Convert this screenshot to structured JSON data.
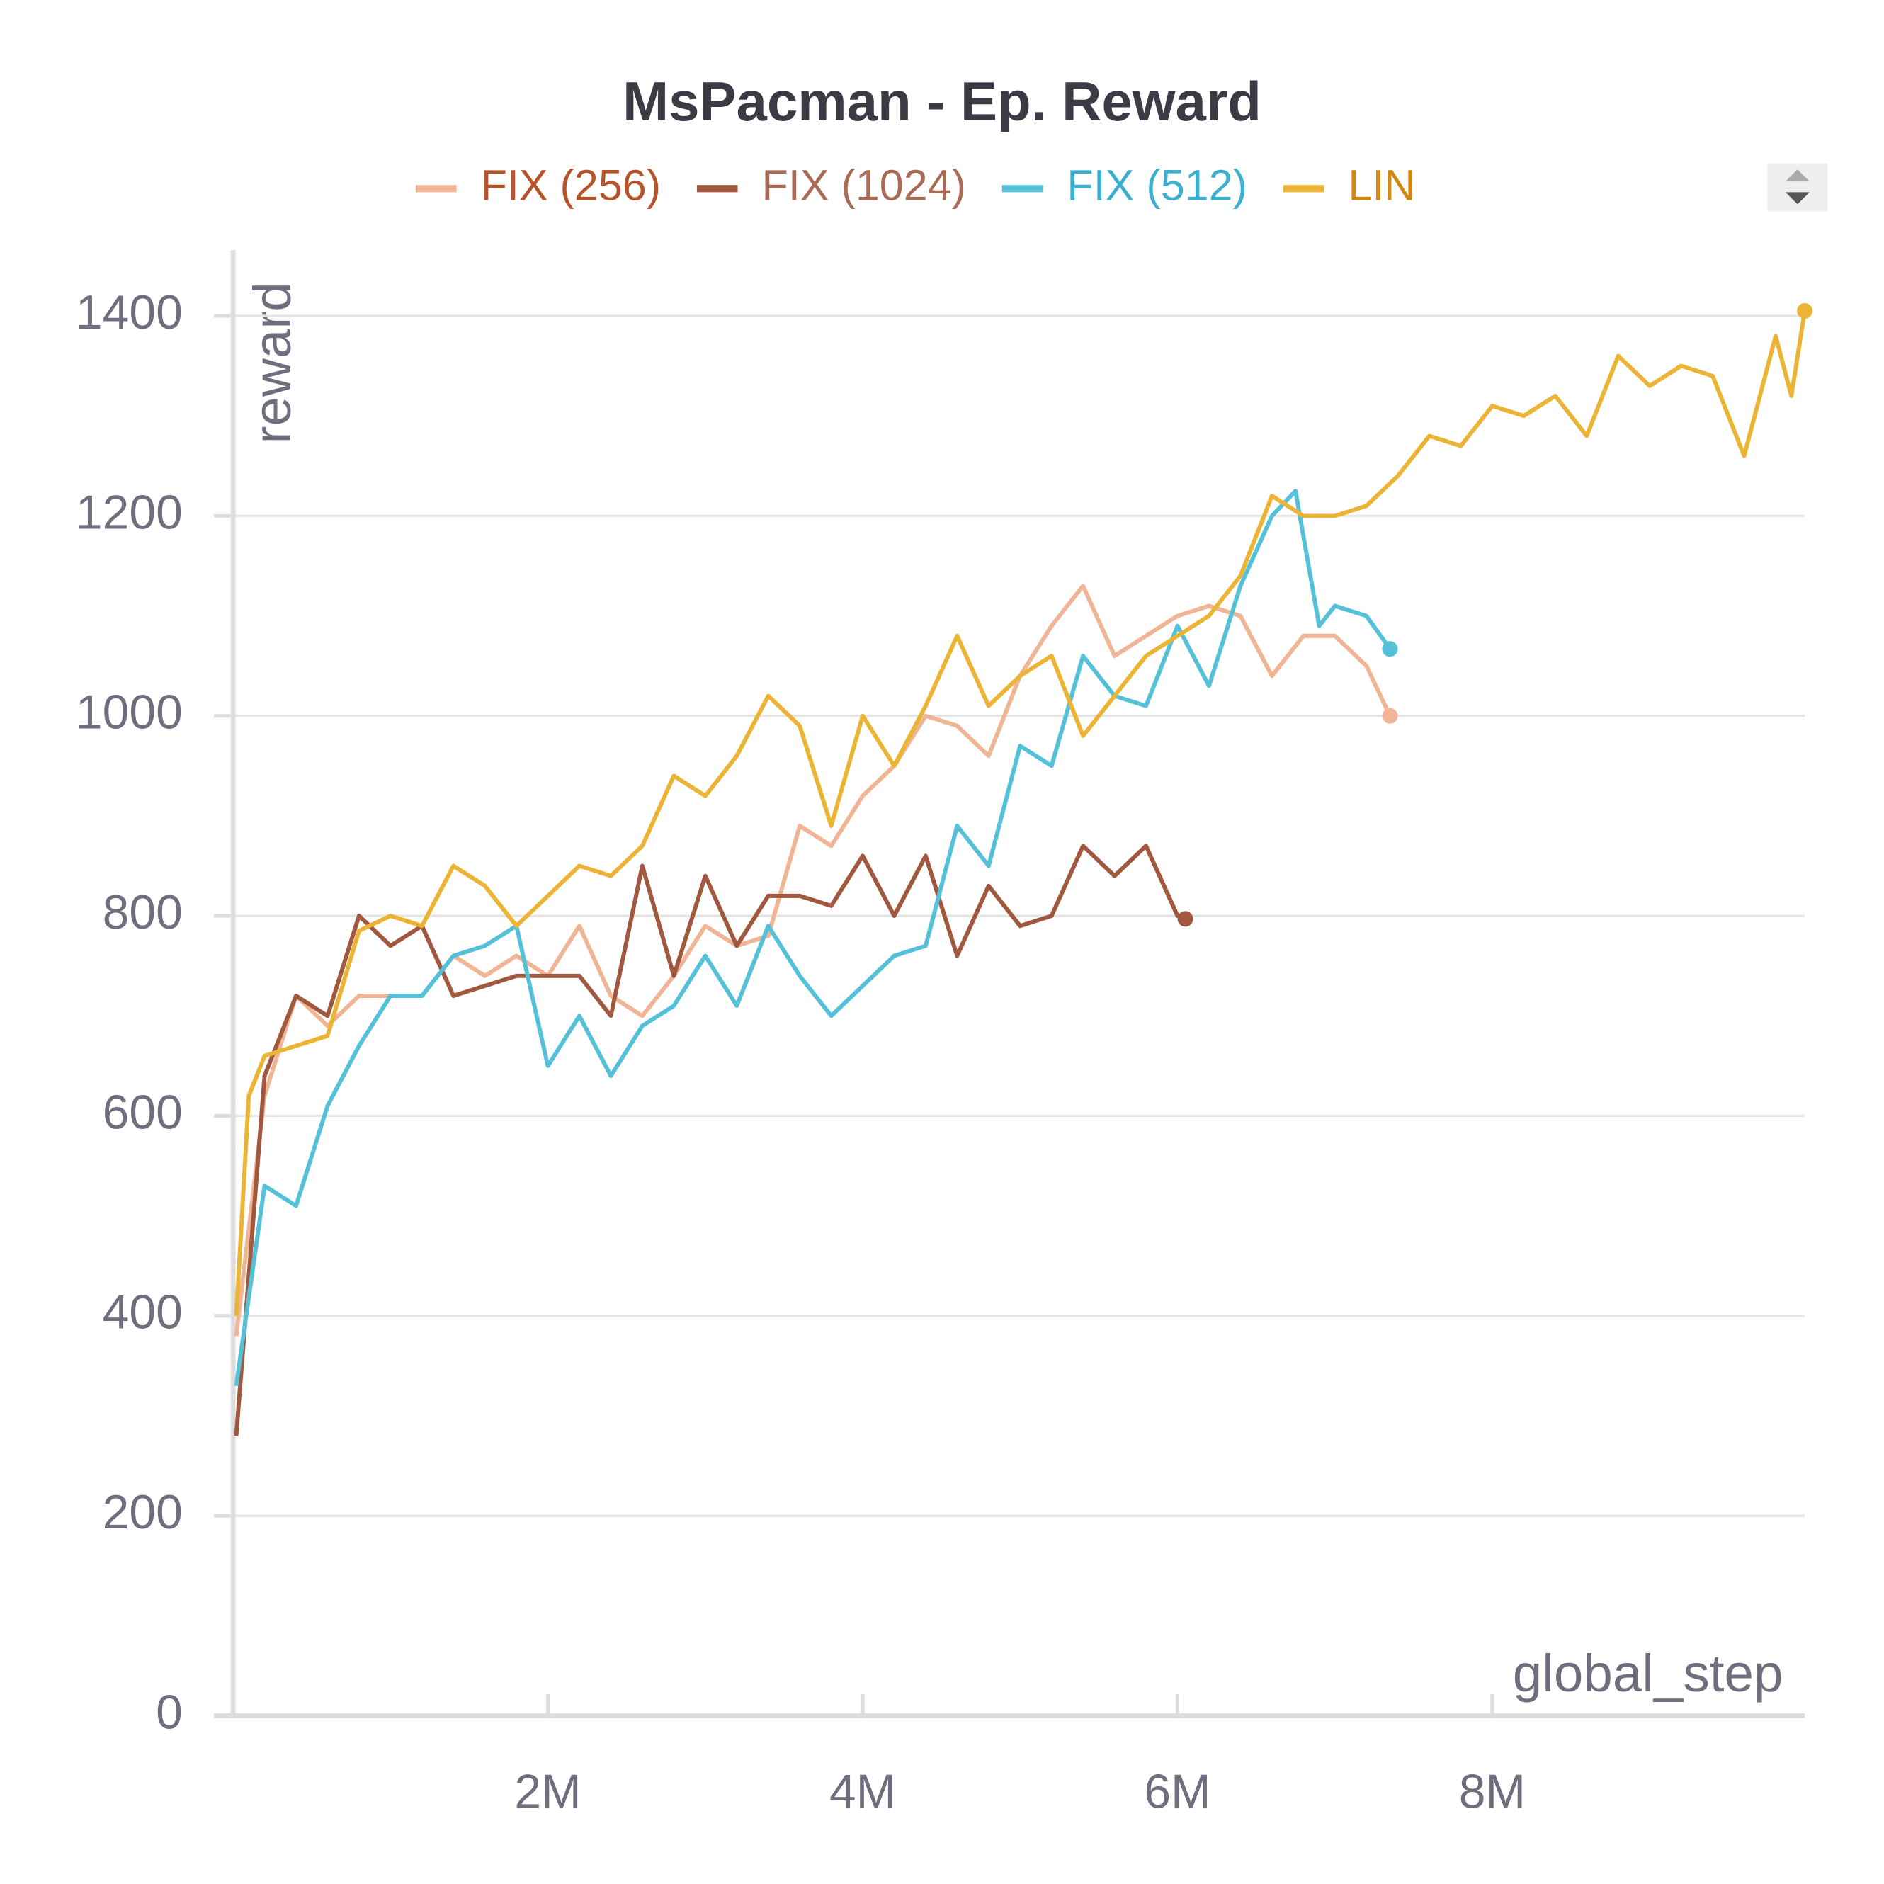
{
  "chart_data": {
    "type": "line",
    "title": "MsPacman - Ep. Reward",
    "xlabel": "global_step",
    "ylabel": "reward",
    "xlim": [
      0,
      9985000
    ],
    "ylim": [
      0,
      1466
    ],
    "xticks": [
      {
        "value": 2000000,
        "label": "2M"
      },
      {
        "value": 4000000,
        "label": "4M"
      },
      {
        "value": 6000000,
        "label": "6M"
      },
      {
        "value": 8000000,
        "label": "8M"
      }
    ],
    "yticks": [
      0,
      200,
      400,
      600,
      800,
      1000,
      1200,
      1400
    ],
    "grid": true,
    "legend": "top",
    "series": [
      {
        "name": "FIX (256)",
        "color": "#f0b594",
        "label_color": "#b5532a",
        "x": [
          20000,
          200000,
          400000,
          600000,
          800000,
          1000000,
          1200000,
          1400000,
          1600000,
          1800000,
          2000000,
          2200000,
          2400000,
          2600000,
          2800000,
          3000000,
          3200000,
          3400000,
          3600000,
          3800000,
          4000000,
          4200000,
          4400000,
          4600000,
          4800000,
          5000000,
          5200000,
          5400000,
          5600000,
          5800000,
          6000000,
          6200000,
          6400000,
          6600000,
          6800000,
          7000000,
          7200000,
          7350000
        ],
        "values": [
          380,
          620,
          720,
          690,
          720,
          720,
          720,
          760,
          740,
          760,
          740,
          790,
          720,
          700,
          740,
          790,
          770,
          780,
          890,
          870,
          920,
          950,
          1000,
          990,
          960,
          1040,
          1090,
          1130,
          1060,
          1080,
          1100,
          1110,
          1100,
          1040,
          1080,
          1080,
          1050,
          1000
        ]
      },
      {
        "name": "FIX (1024)",
        "color": "#a0583f",
        "label_color": "#a96b55",
        "x": [
          20000,
          200000,
          400000,
          600000,
          800000,
          1000000,
          1200000,
          1400000,
          1600000,
          1800000,
          2000000,
          2200000,
          2400000,
          2600000,
          2800000,
          3000000,
          3200000,
          3400000,
          3600000,
          3800000,
          4000000,
          4200000,
          4400000,
          4600000,
          4800000,
          5000000,
          5200000,
          5400000,
          5600000,
          5800000,
          6000000,
          6050000
        ],
        "values": [
          280,
          640,
          720,
          700,
          800,
          770,
          790,
          720,
          730,
          740,
          740,
          740,
          700,
          850,
          740,
          840,
          770,
          820,
          820,
          810,
          860,
          800,
          860,
          760,
          830,
          790,
          800,
          870,
          840,
          870,
          800,
          797
        ]
      },
      {
        "name": "FIX (512)",
        "color": "#55c1d8",
        "label_color": "#3aafd0",
        "x": [
          20000,
          200000,
          400000,
          600000,
          800000,
          1000000,
          1200000,
          1400000,
          1600000,
          1800000,
          2000000,
          2200000,
          2400000,
          2600000,
          2800000,
          3000000,
          3200000,
          3400000,
          3600000,
          3800000,
          4000000,
          4200000,
          4400000,
          4600000,
          4800000,
          5000000,
          5200000,
          5400000,
          5600000,
          5800000,
          6000000,
          6200000,
          6400000,
          6600000,
          6750000,
          6900000,
          7000000,
          7200000,
          7350000
        ],
        "values": [
          330,
          530,
          510,
          610,
          670,
          720,
          720,
          760,
          770,
          790,
          650,
          700,
          640,
          690,
          710,
          760,
          710,
          790,
          740,
          700,
          730,
          760,
          770,
          890,
          850,
          970,
          950,
          1060,
          1020,
          1010,
          1090,
          1030,
          1130,
          1200,
          1225,
          1090,
          1110,
          1100,
          1067
        ]
      },
      {
        "name": "LIN",
        "color": "#ebb434",
        "label_color": "#d4870e",
        "x": [
          20000,
          100000,
          200000,
          400000,
          600000,
          800000,
          1000000,
          1200000,
          1400000,
          1600000,
          1800000,
          2000000,
          2200000,
          2400000,
          2600000,
          2800000,
          3000000,
          3200000,
          3400000,
          3600000,
          3800000,
          4000000,
          4200000,
          4400000,
          4600000,
          4800000,
          5000000,
          5200000,
          5400000,
          5600000,
          5800000,
          6000000,
          6200000,
          6400000,
          6600000,
          6800000,
          7000000,
          7200000,
          7400000,
          7600000,
          7800000,
          8000000,
          8200000,
          8400000,
          8600000,
          8800000,
          9000000,
          9200000,
          9400000,
          9600000,
          9800000,
          9900000,
          9985000
        ],
        "values": [
          400,
          620,
          660,
          670,
          680,
          785,
          800,
          790,
          850,
          830,
          790,
          820,
          850,
          840,
          870,
          940,
          920,
          960,
          1020,
          990,
          890,
          1000,
          950,
          1010,
          1080,
          1010,
          1040,
          1060,
          980,
          1020,
          1060,
          1080,
          1100,
          1140,
          1220,
          1200,
          1200,
          1210,
          1240,
          1280,
          1270,
          1310,
          1300,
          1320,
          1280,
          1360,
          1330,
          1350,
          1340,
          1260,
          1380,
          1320,
          1405
        ]
      }
    ]
  }
}
